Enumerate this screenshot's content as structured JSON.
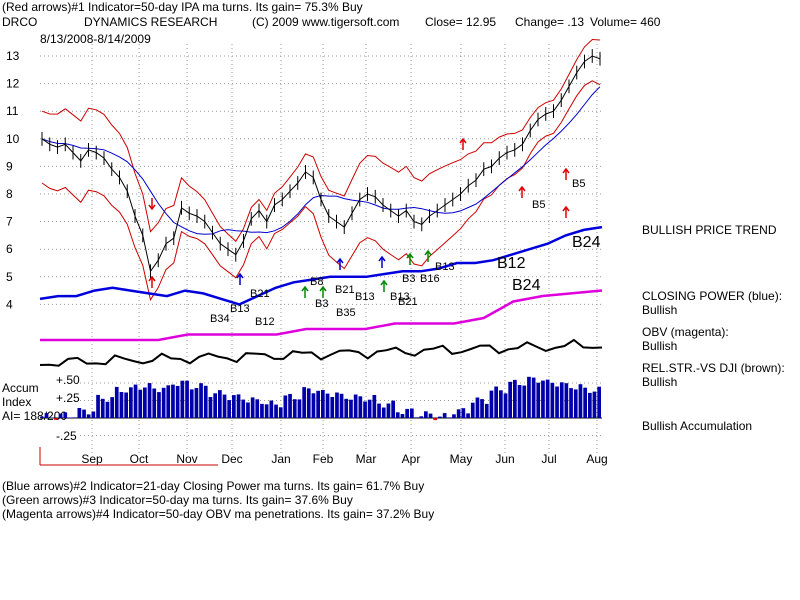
{
  "header": {
    "line1": "(Red arrows)#1 Indicator=50-day IPA ma turns. Its gain= 75.3% Buy",
    "ticker": "DRCO",
    "company": "DYNAMICS RESEARCH",
    "copyright": "(C) 2009 www.tigersoft.com",
    "close_label": "Close=",
    "close_value": "12.95",
    "change_label": "Change=",
    "change_value": ".13",
    "volume_label": "Volume=",
    "volume_value": "460",
    "date_range": "8/13/2008-8/14/2009"
  },
  "side_labels": {
    "trend": "BULLISH PRICE TREND",
    "closing_power": "CLOSING POWER (blue):",
    "closing_power_status": "Bullish",
    "obv": "OBV (magenta):",
    "obv_status": "Bullish",
    "relstr": "REL.STR.-VS DJI (brown):",
    "relstr_status": "Bullish",
    "accumulation": "Bullish Accumulation"
  },
  "accum_panel": {
    "title_line1": "Accum",
    "title_line2": "Index",
    "ai_value": "AI= 188/200",
    "levels": [
      "+.50",
      "+.25",
      "-.25"
    ]
  },
  "footer": {
    "line1": "(Blue arrows)#2 Indicator=21-day Closing Power ma turns. Its gain= 61.7% Buy",
    "line2": "(Green arrows)#3 Indicator=50-day ma turns. Its gain= 37.6% Buy",
    "line3": "(Magenta arrows)#4 Indicator=50-day OBV ma penetrations. Its gain= 37.2% Buy"
  },
  "colors": {
    "price": "#000000",
    "upper_band": "#cc0000",
    "ma": "#0000cc",
    "closing_power": "#0000dd",
    "obv": "#dd00dd",
    "relstr": "#000000",
    "accum_bars": "#0000aa",
    "red_arrow": "#dd0000",
    "green_arrow": "#008800",
    "blue_arrow": "#0000cc",
    "grid": "#999999"
  },
  "chart_data": {
    "type": "line",
    "title": "DRCO DYNAMICS RESEARCH",
    "y_ticks": [
      13,
      12,
      11,
      10,
      9,
      8,
      7,
      6,
      5,
      4
    ],
    "ylim": [
      3.5,
      13.5
    ],
    "x_months": [
      "Sep",
      "Oct",
      "Nov",
      "Dec",
      "Jan",
      "Feb",
      "Mar",
      "Apr",
      "May",
      "Jun",
      "Jul",
      "Aug"
    ],
    "price": [
      10.0,
      9.8,
      9.7,
      9.8,
      9.5,
      9.2,
      9.6,
      9.5,
      9.3,
      8.9,
      8.6,
      8.1,
      7.2,
      6.5,
      5.2,
      5.6,
      6.2,
      6.4,
      7.5,
      7.3,
      7.2,
      7.0,
      6.6,
      6.2,
      6.0,
      5.8,
      6.3,
      7.1,
      7.4,
      7.0,
      7.6,
      7.8,
      8.1,
      8.4,
      8.8,
      8.6,
      7.8,
      7.2,
      7.0,
      6.8,
      7.3,
      7.8,
      8.0,
      7.9,
      7.6,
      7.4,
      7.2,
      7.4,
      7.0,
      6.9,
      7.2,
      7.4,
      7.6,
      7.8,
      8.0,
      8.3,
      8.5,
      8.9,
      9.0,
      9.3,
      9.5,
      9.6,
      9.8,
      10.3,
      10.7,
      10.9,
      11.0,
      11.4,
      11.9,
      12.4,
      12.8,
      13.0,
      12.9
    ],
    "series": [
      {
        "name": "CLOSING POWER (blue)"
      },
      {
        "name": "OBV (magenta)"
      },
      {
        "name": "REL.STR.-VS DJI (brown)"
      }
    ],
    "closing_power": [
      4.2,
      4.3,
      4.3,
      4.5,
      4.6,
      4.5,
      4.4,
      4.3,
      4.5,
      4.4,
      4.2,
      4.0,
      4.3,
      4.6,
      4.8,
      4.9,
      5.0,
      5.0,
      5.0,
      5.1,
      5.2,
      5.2,
      5.3,
      5.5,
      5.5,
      5.6,
      5.8,
      6.0,
      6.2,
      6.5,
      6.7,
      6.8
    ],
    "obv": [
      2.5,
      2.5,
      2.5,
      2.5,
      2.5,
      2.6,
      2.6,
      2.6,
      2.6,
      2.7,
      2.7,
      2.7,
      2.8,
      2.8,
      2.8,
      2.9,
      3.2,
      3.3,
      3.35,
      3.4
    ],
    "accum_index": [
      0.02,
      0.04,
      0.1,
      0.28,
      0.4,
      0.45,
      0.42,
      0.5,
      0.45,
      0.35,
      0.3,
      0.25,
      0.2,
      0.3,
      0.4,
      0.35,
      0.3,
      0.28,
      0.2,
      0.1,
      0.05,
      0.02,
      0.1,
      0.25,
      0.4,
      0.5,
      0.55,
      0.5,
      0.45,
      0.4
    ],
    "signals": [
      {
        "label": "B34",
        "color": "black"
      },
      {
        "label": "B13",
        "color": "black"
      },
      {
        "label": "B21",
        "color": "black"
      },
      {
        "label": "B12",
        "color": "black"
      },
      {
        "label": "B8",
        "color": "black"
      },
      {
        "label": "B3",
        "color": "black"
      },
      {
        "label": "B21",
        "color": "black"
      },
      {
        "label": "B13",
        "color": "black"
      },
      {
        "label": "B35",
        "color": "black"
      },
      {
        "label": "B13",
        "color": "black"
      },
      {
        "label": "B21",
        "color": "black"
      },
      {
        "label": "B3",
        "color": "black"
      },
      {
        "label": "B16",
        "color": "black"
      },
      {
        "label": "B13",
        "color": "black"
      },
      {
        "label": "B5",
        "color": "black"
      },
      {
        "label": "B5",
        "color": "black"
      },
      {
        "label": "B12",
        "color": "black"
      },
      {
        "label": "B24",
        "color": "black"
      },
      {
        "label": "B24",
        "color": "black"
      }
    ]
  }
}
